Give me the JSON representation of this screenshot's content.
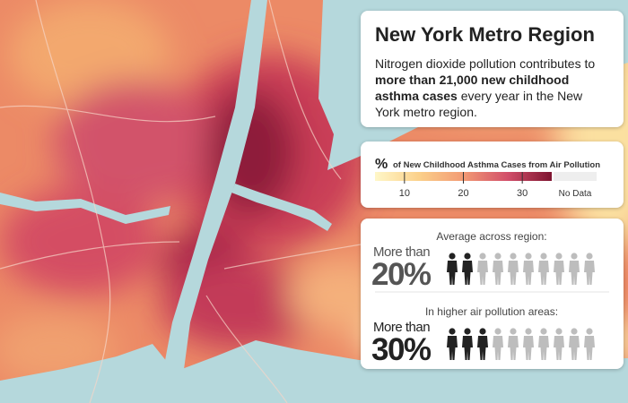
{
  "title": "New York Metro Region",
  "description": [
    {
      "text": "Nitrogen dioxide pollution contributes to ",
      "bold": false
    },
    {
      "text": "more than 21,000 new childhood asthma cases",
      "bold": true
    },
    {
      "text": " every year in the New York metro region.",
      "bold": false
    }
  ],
  "legend": {
    "symbol": "%",
    "title": "of New Childhood Asthma Cases from Air Pollution",
    "lim": [
      5,
      35
    ],
    "ticks": [
      10,
      20,
      30
    ],
    "no_data": "No Data"
  },
  "stats": [
    {
      "heading": "Average across region:",
      "prefix": "More than",
      "value": 20,
      "value_label": "20%",
      "color": "#555555"
    },
    {
      "heading": "In higher air pollution areas:",
      "prefix": "More than",
      "value": 30,
      "value_label": "30%",
      "color": "#222222"
    }
  ]
}
